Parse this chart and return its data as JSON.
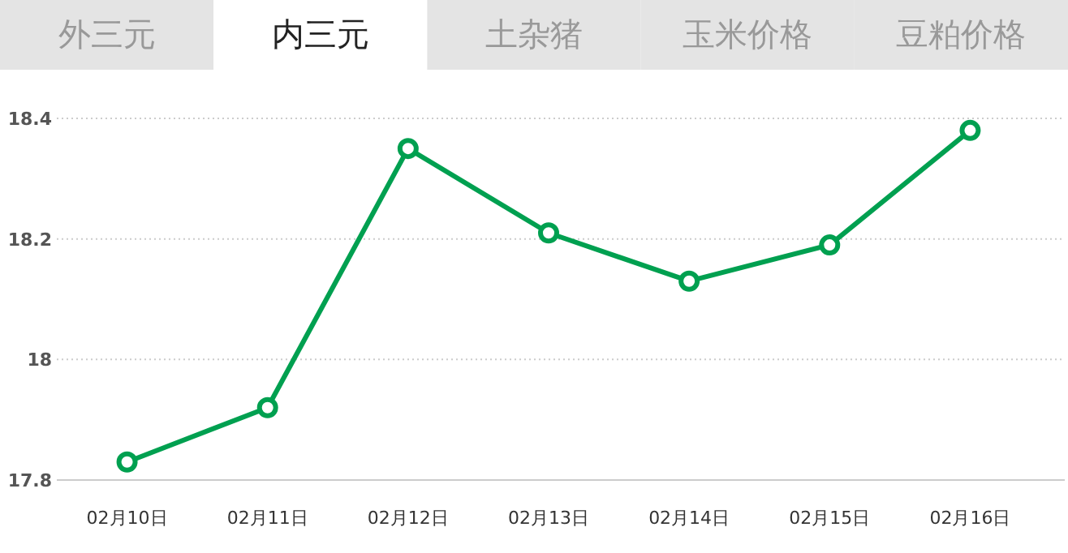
{
  "chart_data": {
    "type": "line",
    "annotations": [
      "外三元",
      "内三元",
      "土杂猪",
      "玉米价格",
      "豆粕价格"
    ],
    "categories": [
      "02月10日",
      "02月11日",
      "02月12日",
      "02月13日",
      "02月14日",
      "02月15日",
      "02月16日"
    ],
    "series": [
      {
        "color": "#00a050",
        "values": [
          17.83,
          17.92,
          18.35,
          18.21,
          18.13,
          18.19,
          18.38
        ]
      }
    ],
    "ylim": [
      17.8,
      18.4
    ],
    "yticks": [
      17.8,
      18,
      18.2,
      18.4
    ],
    "grid": "y",
    "marker": "circle",
    "line_style": "solid"
  }
}
